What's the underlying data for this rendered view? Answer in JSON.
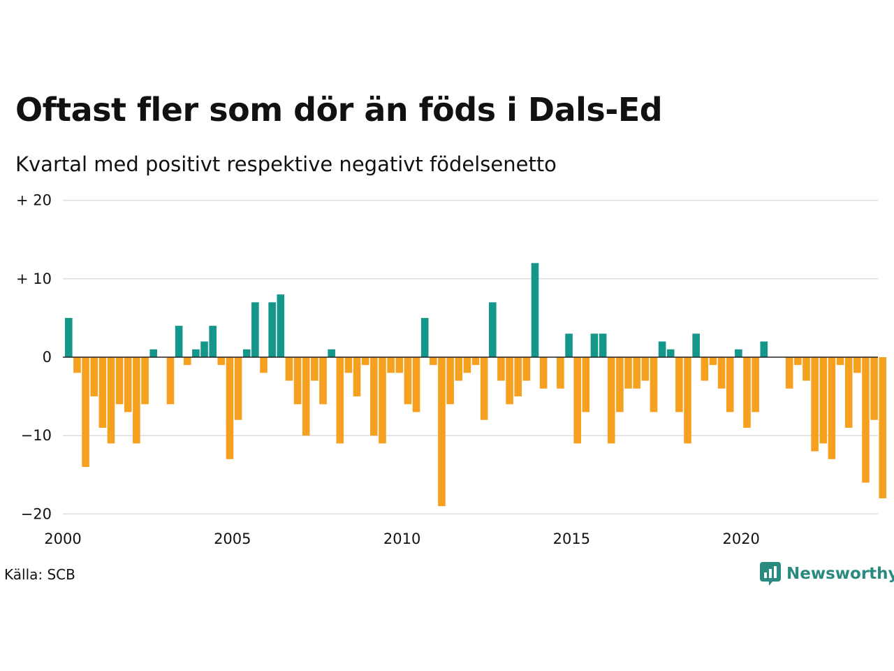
{
  "title": "Oftast fler som dör än föds i Dals-Ed",
  "subtitle": "Kvartal med positivt respektive negativt födelsenetto",
  "source": "Källa: SCB",
  "brand": "Newsworthy",
  "colors": {
    "positive": "#14968a",
    "negative": "#f5a01f",
    "brand": "#2a8a80",
    "grid": "#dddddd"
  },
  "chart_data": {
    "type": "bar",
    "x_ticks": [
      "2000",
      "2005",
      "2010",
      "2015",
      "2020"
    ],
    "y_ticks": [
      {
        "value": 20,
        "label": "+ 20"
      },
      {
        "value": 10,
        "label": "+ 10"
      },
      {
        "value": 0,
        "label": "0"
      },
      {
        "value": -10,
        "label": "−10"
      },
      {
        "value": -20,
        "label": "−20"
      }
    ],
    "ylim": [
      -20,
      20
    ],
    "grid": true,
    "start_year": 2000,
    "values": [
      5,
      -2,
      -14,
      -5,
      -9,
      -11,
      -6,
      -7,
      -11,
      -6,
      1,
      0,
      -6,
      4,
      -1,
      1,
      2,
      4,
      -1,
      -13,
      -8,
      1,
      7,
      -2,
      7,
      8,
      -3,
      -6,
      -10,
      -3,
      -6,
      1,
      -11,
      -2,
      -5,
      -1,
      -10,
      -11,
      -2,
      -2,
      -6,
      -7,
      5,
      -1,
      -19,
      -6,
      -3,
      -2,
      -1,
      -8,
      7,
      -3,
      -6,
      -5,
      -3,
      12,
      -4,
      0,
      -4,
      3,
      -11,
      -7,
      3,
      3,
      -11,
      -7,
      -4,
      -4,
      -3,
      -7,
      2,
      1,
      -7,
      -11,
      3,
      -3,
      -1,
      -4,
      -7,
      1,
      -9,
      -7,
      2,
      0,
      0,
      -4,
      -1,
      -3,
      -12,
      -11,
      -13,
      -1,
      -9,
      -2,
      -16,
      -8,
      -18
    ]
  }
}
